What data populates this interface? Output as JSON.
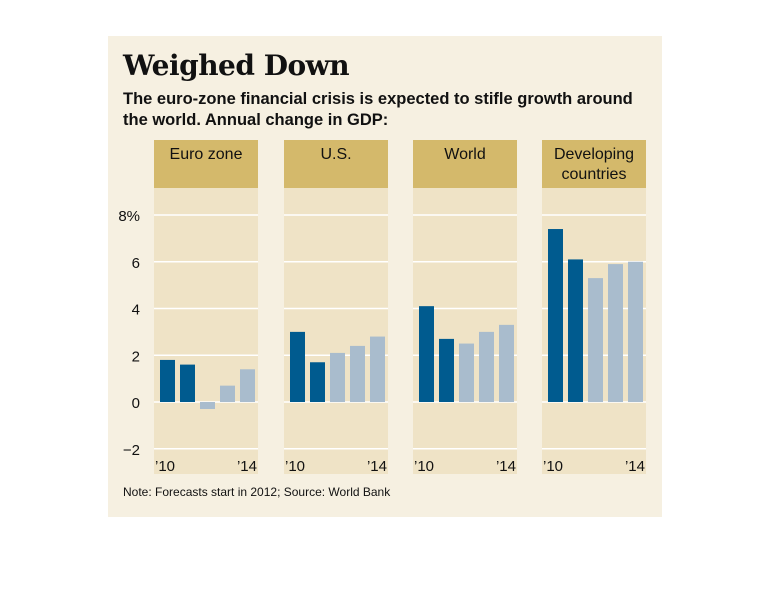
{
  "title": "Weighed Down",
  "subtitle": "The euro-zone financial crisis is expected to stifle growth around the world. Annual change in GDP:",
  "note": "Note: Forecasts start in 2012; Source: World Bank",
  "colors": {
    "background": "#f6f0e1",
    "panel": "#efe3c6",
    "header": "#d4b96b",
    "actual": "#005b8f",
    "forecast": "#a9bccd",
    "gridline": "#ffffff"
  },
  "chart_data": {
    "type": "bar",
    "ylim": [
      -2,
      8
    ],
    "yticks": [
      8,
      6,
      4,
      2,
      0,
      -2
    ],
    "ytick_labels": [
      "8%",
      "6",
      "4",
      "2",
      "0",
      "−2"
    ],
    "x": [
      2010,
      2011,
      2012,
      2013,
      2014
    ],
    "x_tick_labels": [
      "’10",
      "’14"
    ],
    "forecast_start": 2012,
    "panels": [
      {
        "name": "Euro zone",
        "values": [
          1.8,
          1.6,
          -0.3,
          0.7,
          1.4
        ]
      },
      {
        "name": "U.S.",
        "values": [
          3.0,
          1.7,
          2.1,
          2.4,
          2.8
        ]
      },
      {
        "name": "World",
        "values": [
          4.1,
          2.7,
          2.5,
          3.0,
          3.3
        ]
      },
      {
        "name": "Developing countries",
        "name_lines": [
          "Developing",
          "countries"
        ],
        "values": [
          7.4,
          6.1,
          5.3,
          5.9,
          6.0
        ]
      }
    ],
    "grid": true
  }
}
